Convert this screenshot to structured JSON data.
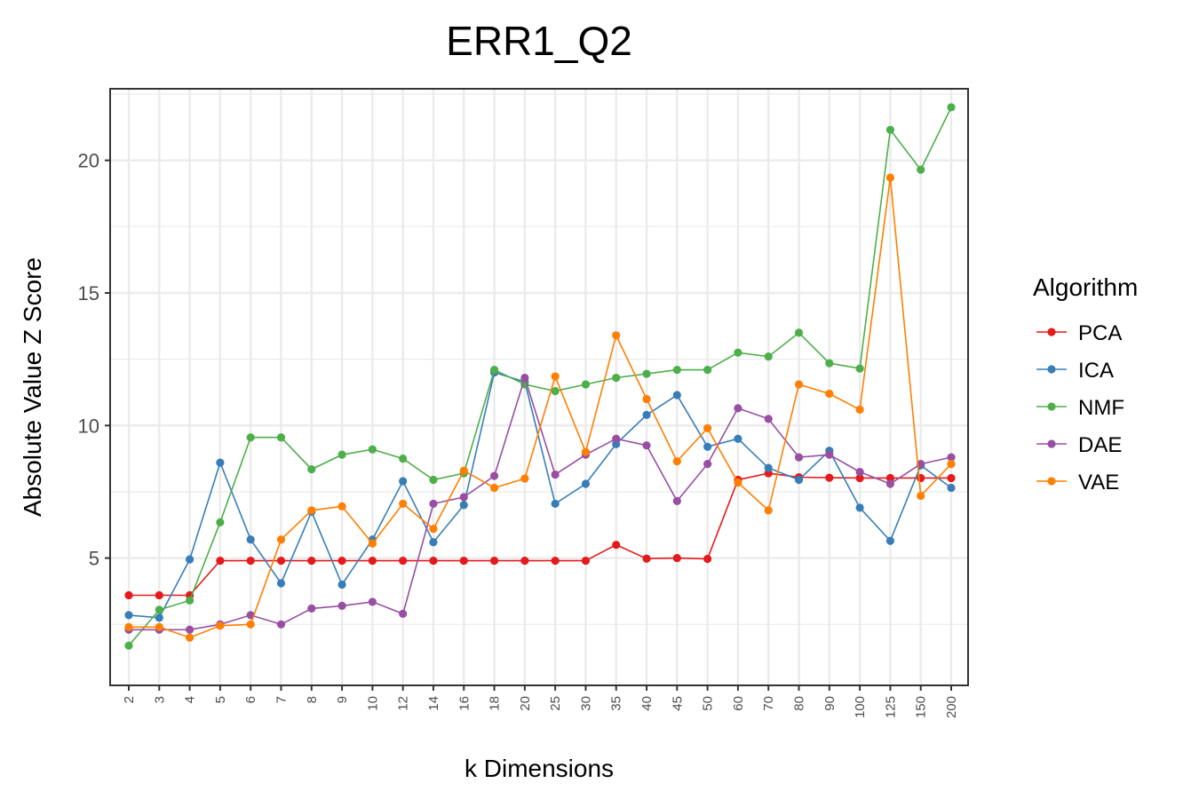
{
  "chart_data": {
    "type": "line",
    "title": "ERR1_Q2",
    "xlabel": "k Dimensions",
    "ylabel": "Absolute Value Z Score",
    "categories": [
      "2",
      "3",
      "4",
      "5",
      "6",
      "7",
      "8",
      "9",
      "10",
      "12",
      "14",
      "16",
      "18",
      "20",
      "25",
      "30",
      "35",
      "40",
      "45",
      "50",
      "60",
      "70",
      "80",
      "90",
      "100",
      "125",
      "150",
      "200"
    ],
    "ylim": [
      0.2,
      22.7
    ],
    "yticks": [
      5,
      10,
      15,
      20
    ],
    "grid": true,
    "legend": {
      "title": "Algorithm",
      "placement": "right"
    },
    "series": [
      {
        "name": "PCA",
        "color": "#e41a1c",
        "values": [
          3.6,
          3.6,
          3.6,
          4.9,
          4.9,
          4.9,
          4.9,
          4.9,
          4.9,
          4.9,
          4.9,
          4.9,
          4.9,
          4.9,
          4.9,
          4.9,
          5.5,
          4.98,
          5.0,
          4.97,
          7.95,
          8.2,
          8.05,
          8.03,
          8.02,
          8.02,
          8.02,
          8.02
        ]
      },
      {
        "name": "ICA",
        "color": "#377eb8",
        "values": [
          2.85,
          2.75,
          4.95,
          8.6,
          5.7,
          4.05,
          6.75,
          4.0,
          5.7,
          7.9,
          5.6,
          7.0,
          12.0,
          11.65,
          7.05,
          7.8,
          9.3,
          10.4,
          11.15,
          9.2,
          9.5,
          8.4,
          7.95,
          9.05,
          6.9,
          5.65,
          8.5,
          7.65
        ]
      },
      {
        "name": "NMF",
        "color": "#4daf4a",
        "values": [
          1.7,
          3.05,
          3.4,
          6.35,
          9.55,
          9.55,
          8.35,
          8.9,
          9.1,
          8.75,
          7.95,
          8.2,
          12.1,
          11.55,
          11.3,
          11.55,
          11.8,
          11.95,
          12.1,
          12.1,
          12.75,
          12.6,
          13.5,
          12.35,
          12.15,
          21.15,
          19.65,
          22.0
        ]
      },
      {
        "name": "DAE",
        "color": "#984ea3",
        "values": [
          2.3,
          2.3,
          2.3,
          2.5,
          2.85,
          2.5,
          3.1,
          3.2,
          3.35,
          2.9,
          7.05,
          7.3,
          8.1,
          11.8,
          8.15,
          8.9,
          9.5,
          9.25,
          7.15,
          8.55,
          10.65,
          10.25,
          8.8,
          8.9,
          8.25,
          7.8,
          8.55,
          8.8
        ]
      },
      {
        "name": "VAE",
        "color": "#ff7f00",
        "values": [
          2.4,
          2.4,
          2.0,
          2.45,
          2.5,
          5.7,
          6.8,
          6.95,
          5.55,
          7.05,
          6.1,
          8.3,
          7.65,
          8.0,
          11.85,
          9.0,
          13.4,
          11.0,
          8.65,
          9.9,
          7.85,
          6.8,
          11.55,
          11.2,
          10.6,
          19.35,
          7.35,
          8.55
        ]
      }
    ]
  }
}
